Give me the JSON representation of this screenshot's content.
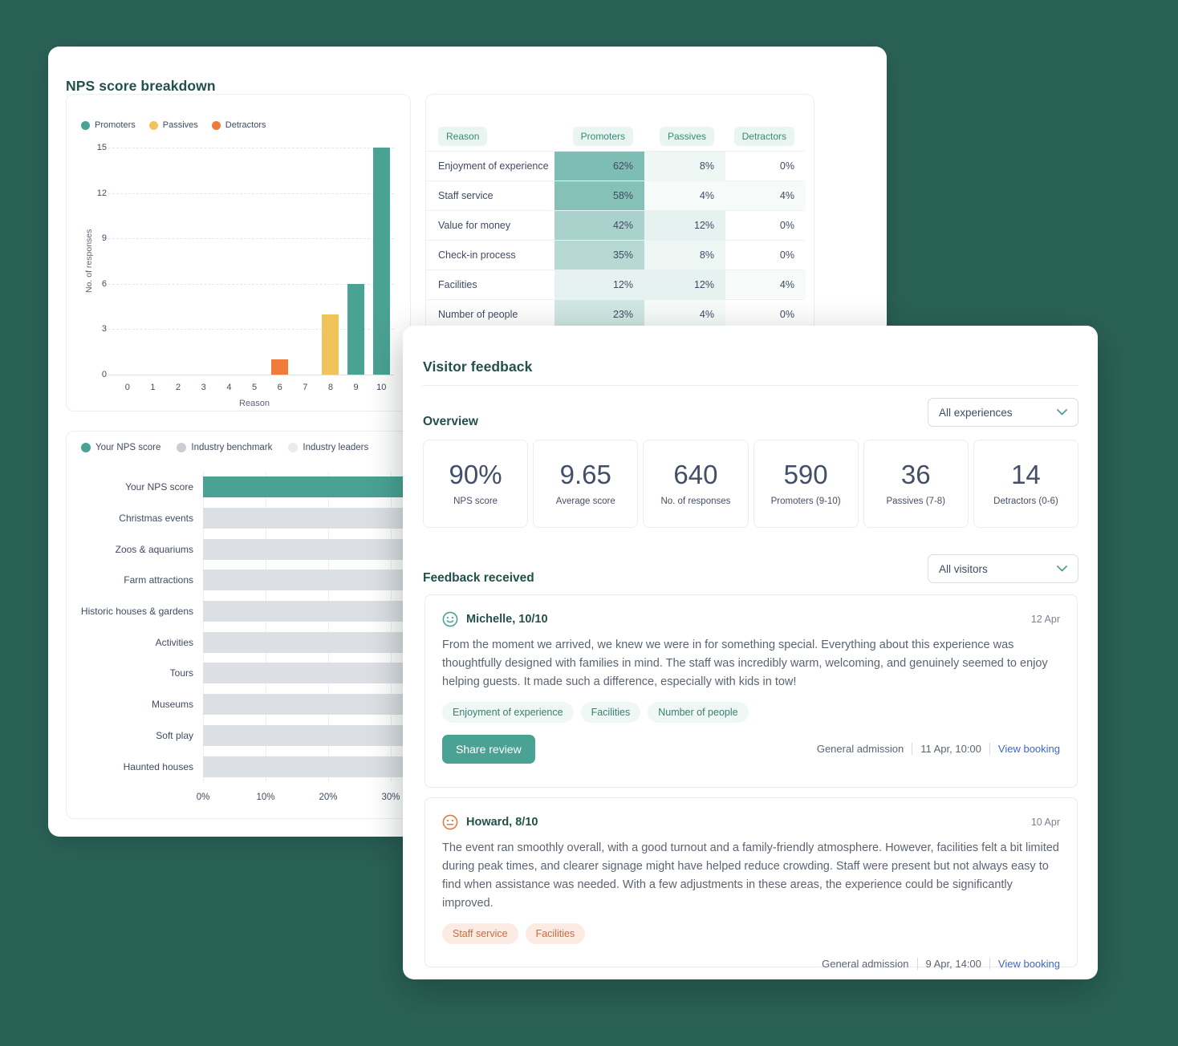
{
  "theme": {
    "background": "#2A6156",
    "teal": "#4AA294",
    "yellow": "#F0C45A",
    "orange": "#EE7B39",
    "gray_bar": "#DCDFE3",
    "benchmark_dot": "#C9CED4",
    "leaders_dot": "#E9EBEE",
    "heading_teal": "#23504A",
    "slate_text": "#3F4A62",
    "body_gray": "#5B6472",
    "link_blue": "#3B66D6",
    "tag_teal_bg": "#EFF8F5",
    "tag_teal_text": "#33816F",
    "tag_orange_bg": "#FBEBE3",
    "tag_orange_text": "#D2693C"
  },
  "nps_card": {
    "title": "NPS score breakdown"
  },
  "chart_data": [
    {
      "type": "bar",
      "title": "Responses by score",
      "xlabel": "Reason",
      "ylabel": "No. of responses",
      "x": [
        0,
        1,
        2,
        3,
        4,
        5,
        6,
        7,
        8,
        9,
        10
      ],
      "series": [
        {
          "name": "Promoters",
          "color": "#4AA294",
          "values": [
            0,
            0,
            0,
            0,
            0,
            0,
            0,
            0,
            0,
            6,
            15
          ]
        },
        {
          "name": "Passives",
          "color": "#F0C45A",
          "values": [
            0,
            0,
            0,
            0,
            0,
            0,
            0,
            0,
            4,
            0,
            0
          ]
        },
        {
          "name": "Detractors",
          "color": "#EE7B39",
          "values": [
            0,
            0,
            0,
            0,
            0,
            0,
            1,
            0,
            0,
            0,
            0
          ]
        }
      ],
      "ylim": [
        0,
        15
      ],
      "yticks": [
        0,
        3,
        6,
        9,
        12,
        15
      ],
      "grid": "dashed horizontal gridlines",
      "legend_position": "top-left"
    },
    {
      "type": "bar",
      "orientation": "horizontal",
      "title": "NPS score vs industry benchmarks",
      "categories": [
        "Your NPS score",
        "Christmas events",
        "Zoos & aquariums",
        "Farm attractions",
        "Historic houses & gardens",
        "Activities",
        "Tours",
        "Museums",
        "Soft play",
        "Haunted houses"
      ],
      "values_pct": [
        null,
        null,
        null,
        null,
        null,
        null,
        null,
        null,
        null,
        null
      ],
      "note": "Bar lengths are occluded by the overlapping Visitor feedback card; every bar extends beyond the 30% gridline.",
      "occluded_render_pct": 62,
      "highlight_color": "#4AA294",
      "bar_color": "#DCDFE3",
      "legend": [
        "Your NPS score",
        "Industry benchmark",
        "Industry leaders"
      ],
      "legend_colors": [
        "#4AA294",
        "#C9CED4",
        "#E9EBEE"
      ],
      "xticks_pct": [
        0,
        10,
        20,
        30
      ],
      "xtick_labels": [
        "0%",
        "10%",
        "20%",
        "30%"
      ],
      "legend_position": "top-left"
    },
    {
      "type": "table",
      "title": "NPS reasons by segment (teal heatmap shading scales with value)",
      "headers": [
        "Reason",
        "Promoters",
        "Passives",
        "Detractors"
      ],
      "rows": [
        {
          "reason": "Enjoyment of experience",
          "promoters": 62,
          "passives": 8,
          "detractors": 0
        },
        {
          "reason": "Staff service",
          "promoters": 58,
          "passives": 4,
          "detractors": 4
        },
        {
          "reason": "Value for money",
          "promoters": 42,
          "passives": 12,
          "detractors": 0
        },
        {
          "reason": "Check-in process",
          "promoters": 35,
          "passives": 8,
          "detractors": 0
        },
        {
          "reason": "Facilities",
          "promoters": 12,
          "passives": 12,
          "detractors": 4
        },
        {
          "reason": "Number of people",
          "promoters": 23,
          "passives": 4,
          "detractors": 0
        }
      ]
    }
  ],
  "feedback_card": {
    "title": "Visitor feedback",
    "overview": {
      "heading": "Overview",
      "filter_label": "All experiences",
      "stats": [
        {
          "value": "90%",
          "label": "NPS score"
        },
        {
          "value": "9.65",
          "label": "Average score"
        },
        {
          "value": "640",
          "label": "No. of responses"
        },
        {
          "value": "590",
          "label": "Promoters (9-10)"
        },
        {
          "value": "36",
          "label": "Passives (7-8)"
        },
        {
          "value": "14",
          "label": "Detractors (0-6)"
        }
      ]
    },
    "feedback": {
      "heading": "Feedback received",
      "filter_label": "All visitors",
      "reviews": [
        {
          "sentiment": "positive",
          "name": "Michelle, 10/10",
          "date": "12 Apr",
          "text": "From the moment we arrived, we knew we were in for something special. Everything about this experience was thoughtfully designed with families in mind. The staff was incredibly warm, welcoming, and genuinely seemed to enjoy helping guests. It made such a difference, especially with kids in tow!",
          "tags": [
            "Enjoyment of experience",
            "Facilities",
            "Number of people"
          ],
          "share_button": "Share review",
          "booking": {
            "experience": "General admission",
            "datetime": "11 Apr, 10:00",
            "link": "View booking"
          }
        },
        {
          "sentiment": "neutral",
          "name": "Howard, 8/10",
          "date": "10 Apr",
          "text": "The event ran smoothly overall, with a good turnout and a family-friendly atmosphere. However, facilities felt a bit limited during peak times, and clearer signage might have helped reduce crowding. Staff were present but not always easy to find when assistance was needed. With a few adjustments in these areas, the experience could be significantly improved.",
          "tags": [
            "Staff service",
            "Facilities"
          ],
          "booking": {
            "experience": "General admission",
            "datetime": "9 Apr, 14:00",
            "link": "View booking"
          }
        }
      ]
    }
  }
}
